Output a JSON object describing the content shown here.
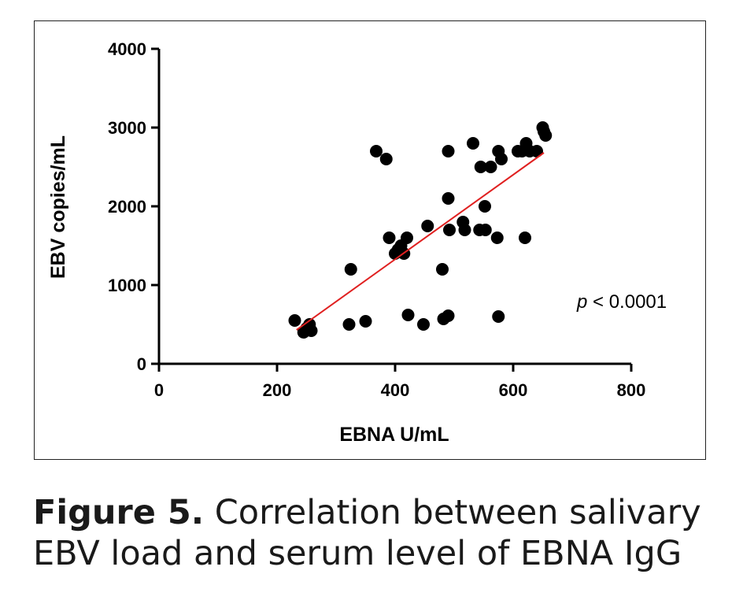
{
  "chart_data": {
    "type": "scatter",
    "xlabel": "EBNA U/mL",
    "ylabel": "EBV copies/mL",
    "xlim": [
      0,
      800
    ],
    "ylim": [
      0,
      4000
    ],
    "x_ticks": [
      "0",
      "200",
      "400",
      "600",
      "800"
    ],
    "y_ticks": [
      "0",
      "1000",
      "2000",
      "3000",
      "4000"
    ],
    "grid": false,
    "point_color": "#000000",
    "fit_line_color": "#e02020",
    "annotation": {
      "italic": "p",
      "rest": " < 0.0001"
    },
    "points": [
      [
        230,
        550
      ],
      [
        245,
        400
      ],
      [
        250,
        450
      ],
      [
        255,
        500
      ],
      [
        258,
        420
      ],
      [
        322,
        500
      ],
      [
        325,
        1200
      ],
      [
        350,
        540
      ],
      [
        368,
        2700
      ],
      [
        385,
        2600
      ],
      [
        390,
        1600
      ],
      [
        400,
        1400
      ],
      [
        405,
        1450
      ],
      [
        410,
        1500
      ],
      [
        415,
        1400
      ],
      [
        420,
        1600
      ],
      [
        422,
        620
      ],
      [
        448,
        500
      ],
      [
        455,
        1750
      ],
      [
        480,
        1200
      ],
      [
        482,
        570
      ],
      [
        490,
        610
      ],
      [
        492,
        1700
      ],
      [
        490,
        2100
      ],
      [
        490,
        2700
      ],
      [
        515,
        1800
      ],
      [
        518,
        1700
      ],
      [
        532,
        2800
      ],
      [
        543,
        1700
      ],
      [
        545,
        2500
      ],
      [
        552,
        2000
      ],
      [
        553,
        1700
      ],
      [
        562,
        2500
      ],
      [
        573,
        1600
      ],
      [
        575,
        600
      ],
      [
        575,
        2700
      ],
      [
        580,
        2600
      ],
      [
        608,
        2700
      ],
      [
        615,
        2700
      ],
      [
        620,
        1600
      ],
      [
        622,
        2800
      ],
      [
        628,
        2700
      ],
      [
        640,
        2700
      ],
      [
        650,
        3000
      ],
      [
        652,
        2950
      ],
      [
        655,
        2900
      ]
    ],
    "fit_line": [
      [
        233,
        430
      ],
      [
        652,
        2680
      ]
    ]
  },
  "caption": {
    "label": "Figure 5.",
    "text": " Correlation between salivary EBV load and serum level of EBNA IgG"
  }
}
